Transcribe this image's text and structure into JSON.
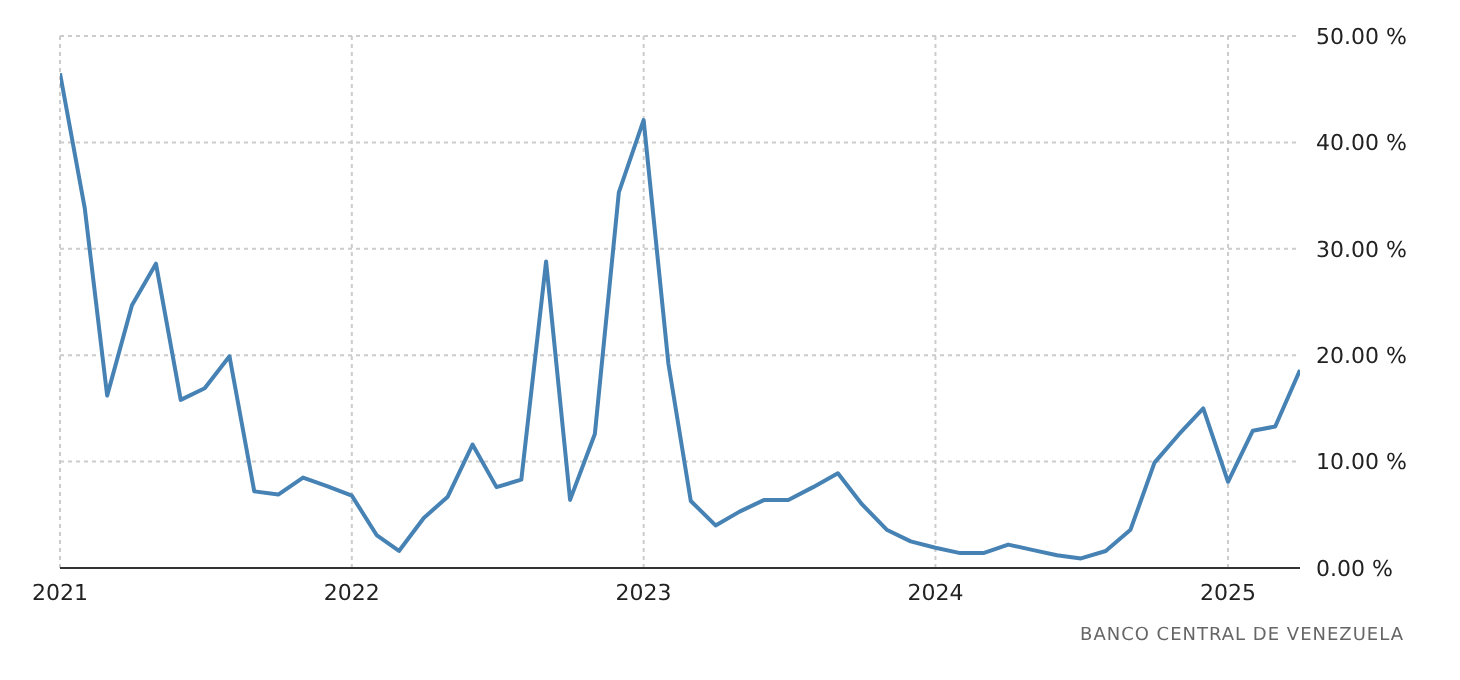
{
  "chart_data": {
    "type": "line",
    "x": [
      "2021-01",
      "2021-02",
      "2021-03",
      "2021-04",
      "2021-05",
      "2021-06",
      "2021-07",
      "2021-08",
      "2021-09",
      "2021-10",
      "2021-11",
      "2021-12",
      "2022-01",
      "2022-02",
      "2022-03",
      "2022-04",
      "2022-05",
      "2022-06",
      "2022-07",
      "2022-08",
      "2022-09",
      "2022-10",
      "2022-11",
      "2022-12",
      "2023-01",
      "2023-02",
      "2023-03",
      "2023-04",
      "2023-05",
      "2023-06",
      "2023-07",
      "2023-08",
      "2023-09",
      "2023-10",
      "2023-11",
      "2023-12",
      "2024-01",
      "2024-02",
      "2024-03",
      "2024-04",
      "2024-05",
      "2024-06",
      "2024-07",
      "2024-08",
      "2024-09",
      "2024-10",
      "2024-11",
      "2024-12",
      "2025-01",
      "2025-02",
      "2025-03",
      "2025-04"
    ],
    "series": [
      {
        "color": "#4682b4",
        "values": [
          46.5,
          33.8,
          16.2,
          24.7,
          28.6,
          15.8,
          16.9,
          19.9,
          7.2,
          6.9,
          8.5,
          7.7,
          6.8,
          3.1,
          1.6,
          4.7,
          6.7,
          11.6,
          7.6,
          8.3,
          28.8,
          6.4,
          12.6,
          35.3,
          42.1,
          19.2,
          6.3,
          4.0,
          5.3,
          6.4,
          6.4,
          7.6,
          8.9,
          6.0,
          3.6,
          2.5,
          1.9,
          1.4,
          1.4,
          2.2,
          1.7,
          1.2,
          0.9,
          1.6,
          3.6,
          9.9,
          12.6,
          15.0,
          8.1,
          12.9,
          13.3,
          18.6
        ]
      }
    ],
    "xlim": [
      "2021-01",
      "2025-04"
    ],
    "xticks": [
      {
        "value": "2021-01",
        "label": "2021"
      },
      {
        "value": "2022-01",
        "label": "2022"
      },
      {
        "value": "2023-01",
        "label": "2023"
      },
      {
        "value": "2024-01",
        "label": "2024"
      },
      {
        "value": "2025-01",
        "label": "2025"
      }
    ],
    "ylim": [
      0,
      50
    ],
    "yticks": [
      {
        "value": 0,
        "label": "0.00 %"
      },
      {
        "value": 10,
        "label": "10.00 %"
      },
      {
        "value": 20,
        "label": "20.00 %"
      },
      {
        "value": 30,
        "label": "30.00 %"
      },
      {
        "value": 40,
        "label": "40.00 %"
      },
      {
        "value": 50,
        "label": "50.00 %"
      }
    ],
    "grid": true,
    "line_style": "solid",
    "marker": "none",
    "annotations": [
      "BANCO CENTRAL DE VENEZUELA"
    ]
  }
}
